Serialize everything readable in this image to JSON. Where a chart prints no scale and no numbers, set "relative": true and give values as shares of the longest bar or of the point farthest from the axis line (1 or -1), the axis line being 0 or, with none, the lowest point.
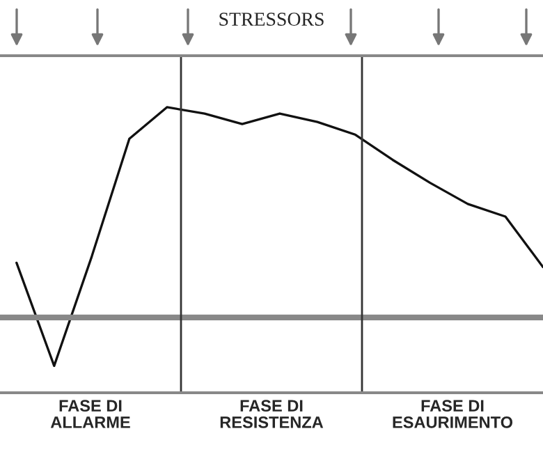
{
  "chart_data": {
    "type": "line",
    "title": "STRESSORS",
    "relative": true,
    "categories": [
      null,
      null,
      null,
      null,
      null,
      null,
      null,
      null,
      null,
      null,
      null,
      null,
      null,
      null,
      null
    ],
    "series": [
      {
        "color": "#111111",
        "values": [
          0.26,
          -0.23,
          0.29,
          0.85,
          1,
          0.97,
          0.92,
          0.97,
          0.93,
          0.87,
          0.75,
          0.64,
          0.54,
          0.48,
          0.24
        ]
      }
    ],
    "annotations": [
      "FASE DI\nALLARME",
      "FASE DI\nRESISTENZA",
      "FASE DI\nESAURIMENTO"
    ],
    "legend": false,
    "marker": "none",
    "line_style": "solid"
  }
}
